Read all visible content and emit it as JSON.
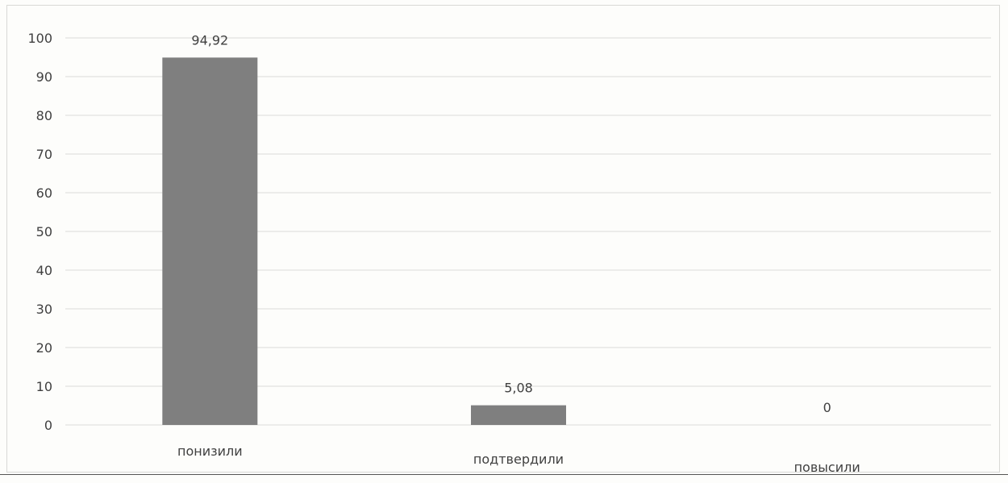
{
  "chart_data": {
    "type": "bar",
    "categories": [
      "понизили",
      "подтвердили",
      "повысили"
    ],
    "values": [
      94.92,
      5.08,
      0
    ],
    "data_labels": [
      "94,92",
      "5,08",
      "0"
    ],
    "ylim": [
      0,
      100
    ],
    "yticks": [
      "0",
      "10",
      "20",
      "30",
      "40",
      "50",
      "60",
      "70",
      "80",
      "90",
      "100"
    ],
    "grid": true,
    "legend": "none",
    "title": "",
    "xlabel": "",
    "ylabel": "",
    "colors": {
      "bar": "#7f7f7f",
      "grid": "#dcdcd8",
      "text": "#404040"
    }
  }
}
